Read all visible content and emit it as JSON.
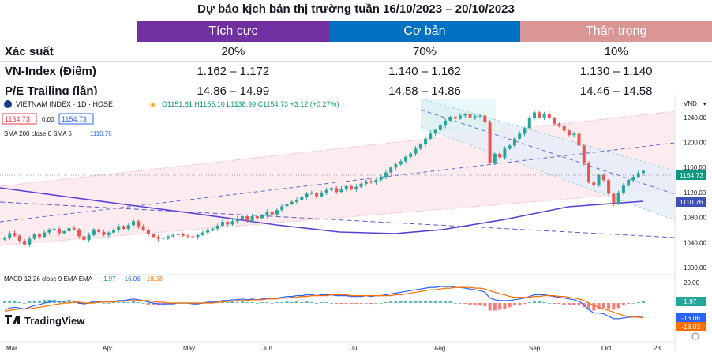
{
  "title": "Dự báo kịch bản thị trường tuần 16/10/2023 – 20/10/2023",
  "scenarios": {
    "headers": [
      {
        "label": "Tích cực",
        "color": "#7030a0"
      },
      {
        "label": "Cơ bản",
        "color": "#0070c0"
      },
      {
        "label": "Thận trọng",
        "color": "#d99694"
      }
    ],
    "rows": [
      {
        "label": "Xác suất",
        "values": [
          "20%",
          "70%",
          "10%"
        ]
      },
      {
        "label": "VN-Index (Điểm)",
        "values": [
          "1.162 – 1.172",
          "1.140 – 1.162",
          "1.130 – 1.140"
        ]
      },
      {
        "label": "P/E Trailing (lần)",
        "values": [
          "14,86 – 14,99",
          "14,58 – 14,86",
          "14,46 – 14,58"
        ]
      }
    ]
  },
  "chart_header": {
    "symbol": "VIETNAM INDEX · 1D · HOSE",
    "ohlc": "O1151.61  H1155.10  L1138.99  C1154.73  +3.12 (+0.27%)",
    "price_box_left": "1154.73",
    "spread": "0.00",
    "price_box_right": "1154.73",
    "sma_label": "SMA 200 close 0 SMA 5",
    "sma_value": "1110.76",
    "currency": "VND",
    "macd_label": "MACD 12 26 close 9 EMA EMA",
    "macd_values": [
      "1.97",
      "-16.06",
      "-18.03"
    ],
    "brand": "TradingView"
  },
  "chart_data": {
    "type": "candlestick",
    "price_axis_ticks": [
      1000,
      1040,
      1080,
      1120,
      1160,
      1200,
      1240
    ],
    "price_ylim": [
      995,
      1265
    ],
    "x_labels": [
      "Mar",
      "Apr",
      "May",
      "Jun",
      "Jul",
      "Aug",
      "Sep",
      "Oct",
      "23"
    ],
    "last_price": 1154.73,
    "sma200_last": 1110.76,
    "close": [
      1048,
      1055,
      1051,
      1043,
      1037,
      1046,
      1053,
      1049,
      1056,
      1061,
      1062,
      1055,
      1058,
      1063,
      1061,
      1050,
      1044,
      1052,
      1061,
      1057,
      1052,
      1056,
      1060,
      1066,
      1062,
      1068,
      1074,
      1066,
      1060,
      1053,
      1049,
      1046,
      1048,
      1050,
      1052,
      1054,
      1051,
      1050,
      1049,
      1052,
      1056,
      1060,
      1062,
      1067,
      1073,
      1069,
      1074,
      1078,
      1082,
      1075,
      1082,
      1079,
      1083,
      1089,
      1085,
      1092,
      1098,
      1102,
      1105,
      1108,
      1113,
      1118,
      1119,
      1114,
      1120,
      1124,
      1127,
      1121,
      1126,
      1130,
      1125,
      1129,
      1134,
      1138,
      1136,
      1140,
      1145,
      1152,
      1160,
      1165,
      1170,
      1177,
      1182,
      1190,
      1197,
      1206,
      1214,
      1220,
      1227,
      1235,
      1241,
      1238,
      1243,
      1245,
      1240,
      1242,
      1243,
      1232,
      1168,
      1182,
      1176,
      1190,
      1195,
      1206,
      1214,
      1223,
      1239,
      1248,
      1240,
      1246,
      1239,
      1230,
      1226,
      1219,
      1212,
      1214,
      1195,
      1167,
      1136,
      1131,
      1148,
      1140,
      1118,
      1102,
      1120,
      1131,
      1140,
      1145,
      1151,
      1154.73
    ],
    "macd": [
      -8,
      -6,
      -5,
      -6,
      -7,
      -5,
      -3,
      -2,
      0,
      1,
      2,
      2,
      2,
      3,
      2,
      0,
      -1,
      0,
      2,
      2,
      1,
      1,
      2,
      3,
      3,
      4,
      5,
      4,
      3,
      1,
      0,
      -1,
      -1,
      -1,
      -1,
      0,
      0,
      0,
      -1,
      -1,
      0,
      1,
      1,
      2,
      3,
      3,
      4,
      4,
      5,
      4,
      5,
      4,
      5,
      6,
      5,
      6,
      7,
      8,
      8,
      9,
      9,
      10,
      10,
      9,
      10,
      10,
      10,
      9,
      9,
      9,
      8,
      8,
      8,
      9,
      8,
      9,
      9,
      10,
      11,
      12,
      13,
      14,
      15,
      16,
      17,
      18,
      19,
      19,
      20,
      20,
      20,
      19,
      19,
      18,
      17,
      16,
      15,
      13,
      6,
      4,
      3,
      3,
      3,
      4,
      5,
      6,
      8,
      10,
      10,
      10,
      9,
      8,
      7,
      6,
      5,
      4,
      2,
      -2,
      -8,
      -12,
      -12,
      -13,
      -16,
      -19,
      -19,
      -18,
      -17,
      -17,
      -16,
      -16.06
    ],
    "signal": [
      -10,
      -9,
      -8,
      -7,
      -7,
      -7,
      -6,
      -5,
      -4,
      -3,
      -2,
      -1,
      0,
      0,
      1,
      1,
      0,
      0,
      0,
      1,
      1,
      1,
      1,
      2,
      2,
      3,
      3,
      3,
      3,
      3,
      2,
      1,
      1,
      0,
      0,
      0,
      0,
      0,
      0,
      0,
      0,
      0,
      0,
      1,
      1,
      2,
      2,
      3,
      3,
      3,
      4,
      4,
      4,
      5,
      5,
      5,
      6,
      6,
      7,
      7,
      8,
      8,
      9,
      9,
      9,
      9,
      10,
      10,
      10,
      10,
      9,
      9,
      9,
      9,
      9,
      9,
      9,
      9,
      9,
      10,
      10,
      11,
      12,
      13,
      14,
      15,
      16,
      16,
      17,
      18,
      18,
      19,
      19,
      19,
      19,
      18,
      18,
      17,
      15,
      13,
      11,
      10,
      8,
      7,
      7,
      7,
      7,
      8,
      8,
      9,
      9,
      9,
      8,
      8,
      7,
      6,
      5,
      3,
      0,
      -3,
      -5,
      -7,
      -9,
      -11,
      -13,
      -15,
      -16,
      -17,
      -17,
      -18.03
    ]
  }
}
